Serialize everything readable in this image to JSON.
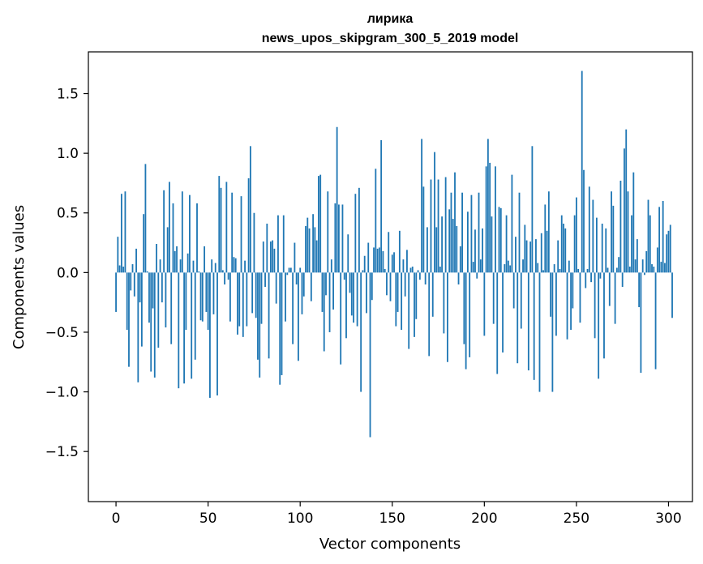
{
  "chart_data": {
    "type": "bar",
    "title_line1": "лирика",
    "title_line2": "news_upos_skipgram_300_5_2019 model",
    "xlabel": "Vector components",
    "ylabel": "Components values",
    "xlim": [
      -15,
      313
    ],
    "ylim": [
      -1.92,
      1.85
    ],
    "x_ticks": [
      0,
      50,
      100,
      150,
      200,
      250,
      300
    ],
    "x_tick_labels": [
      "0",
      "50",
      "100",
      "150",
      "200",
      "250",
      "300"
    ],
    "y_ticks": [
      -1.5,
      -1.0,
      -0.5,
      0.0,
      0.5,
      1.0,
      1.5
    ],
    "y_tick_labels": [
      "−1.5",
      "−1.0",
      "−0.5",
      "0.0",
      "0.5",
      "1.0",
      "1.5"
    ],
    "bar_color": "#1f77b4",
    "values": [
      -0.33,
      0.3,
      0.06,
      0.66,
      0.05,
      0.68,
      -0.48,
      -0.79,
      -0.15,
      0.07,
      -0.2,
      0.2,
      -0.92,
      -0.25,
      -0.62,
      0.49,
      0.91,
      0.01,
      -0.42,
      -0.83,
      -0.3,
      -0.88,
      0.24,
      -0.63,
      0.11,
      -0.25,
      0.69,
      -0.46,
      0.38,
      0.76,
      -0.6,
      0.58,
      0.18,
      0.22,
      -0.97,
      0.11,
      0.68,
      -0.93,
      -0.48,
      0.16,
      0.65,
      -0.89,
      0.1,
      -0.73,
      0.58,
      0.01,
      -0.4,
      -0.41,
      0.22,
      -0.33,
      -0.48,
      -1.05,
      0.11,
      -0.35,
      0.08,
      -1.03,
      0.81,
      0.71,
      0.02,
      -0.1,
      0.76,
      -0.06,
      -0.41,
      0.67,
      0.13,
      0.12,
      -0.52,
      -0.45,
      0.64,
      -0.54,
      0.1,
      -0.45,
      0.79,
      1.06,
      -0.34,
      0.5,
      -0.38,
      -0.73,
      -0.88,
      -0.43,
      0.26,
      -0.12,
      0.41,
      -0.72,
      0.26,
      0.27,
      0.2,
      -0.26,
      0.48,
      -0.94,
      -0.86,
      0.48,
      -0.41,
      -0.02,
      0.04,
      0.04,
      -0.6,
      0.25,
      -0.1,
      -0.74,
      0.04,
      -0.35,
      -0.2,
      0.39,
      0.46,
      0.37,
      -0.24,
      0.49,
      0.38,
      0.27,
      0.81,
      0.82,
      -0.33,
      -0.66,
      -0.19,
      0.68,
      -0.5,
      0.11,
      -0.31,
      0.58,
      1.22,
      0.57,
      -0.77,
      0.57,
      -0.06,
      -0.55,
      0.32,
      -0.17,
      -0.36,
      -0.42,
      0.66,
      -0.45,
      0.71,
      -1.0,
      0.02,
      0.14,
      -0.34,
      0.25,
      -1.38,
      -0.23,
      0.21,
      0.87,
      0.2,
      0.21,
      1.11,
      0.18,
      0.03,
      -0.19,
      0.34,
      -0.24,
      0.15,
      0.17,
      -0.45,
      -0.33,
      0.35,
      -0.48,
      0.11,
      -0.2,
      0.19,
      -0.64,
      0.04,
      0.05,
      -0.54,
      -0.39,
      0.02,
      -0.06,
      1.12,
      0.72,
      -0.1,
      0.38,
      -0.7,
      0.78,
      -0.37,
      1.01,
      0.38,
      0.78,
      0.05,
      0.47,
      -0.51,
      0.8,
      -0.75,
      0.53,
      0.67,
      0.45,
      0.84,
      0.39,
      -0.1,
      0.22,
      0.67,
      -0.6,
      -0.81,
      0.51,
      -0.71,
      0.65,
      0.09,
      0.36,
      -0.05,
      0.67,
      0.11,
      0.37,
      -0.53,
      0.89,
      1.12,
      0.92,
      0.47,
      -0.43,
      0.89,
      -0.85,
      0.55,
      0.54,
      -0.67,
      0.07,
      0.48,
      0.1,
      0.06,
      0.82,
      -0.3,
      0.3,
      -0.76,
      0.67,
      -0.47,
      0.11,
      0.4,
      0.27,
      -0.82,
      0.26,
      1.06,
      -0.9,
      0.28,
      0.08,
      -1.0,
      0.33,
      0.02,
      0.57,
      0.35,
      0.68,
      -0.37,
      -1.0,
      0.07,
      -0.53,
      0.27,
      0.03,
      0.48,
      0.41,
      0.37,
      -0.56,
      0.1,
      -0.48,
      -0.3,
      0.48,
      0.63,
      0.03,
      -0.42,
      1.69,
      0.86,
      -0.13,
      0.03,
      0.72,
      -0.08,
      0.61,
      -0.55,
      0.46,
      -0.89,
      -0.05,
      0.41,
      -0.72,
      0.37,
      0.04,
      -0.28,
      0.68,
      0.56,
      -0.43,
      0.04,
      0.13,
      0.77,
      -0.12,
      1.04,
      1.2,
      0.68,
      0.05,
      0.48,
      0.84,
      0.11,
      0.28,
      -0.29,
      -0.84,
      0.11,
      -0.02,
      0.18,
      0.61,
      0.48,
      0.07,
      0.05,
      -0.81,
      0.21,
      0.55,
      0.09,
      0.6,
      0.08,
      0.32,
      0.35,
      0.4,
      -0.38
    ]
  }
}
